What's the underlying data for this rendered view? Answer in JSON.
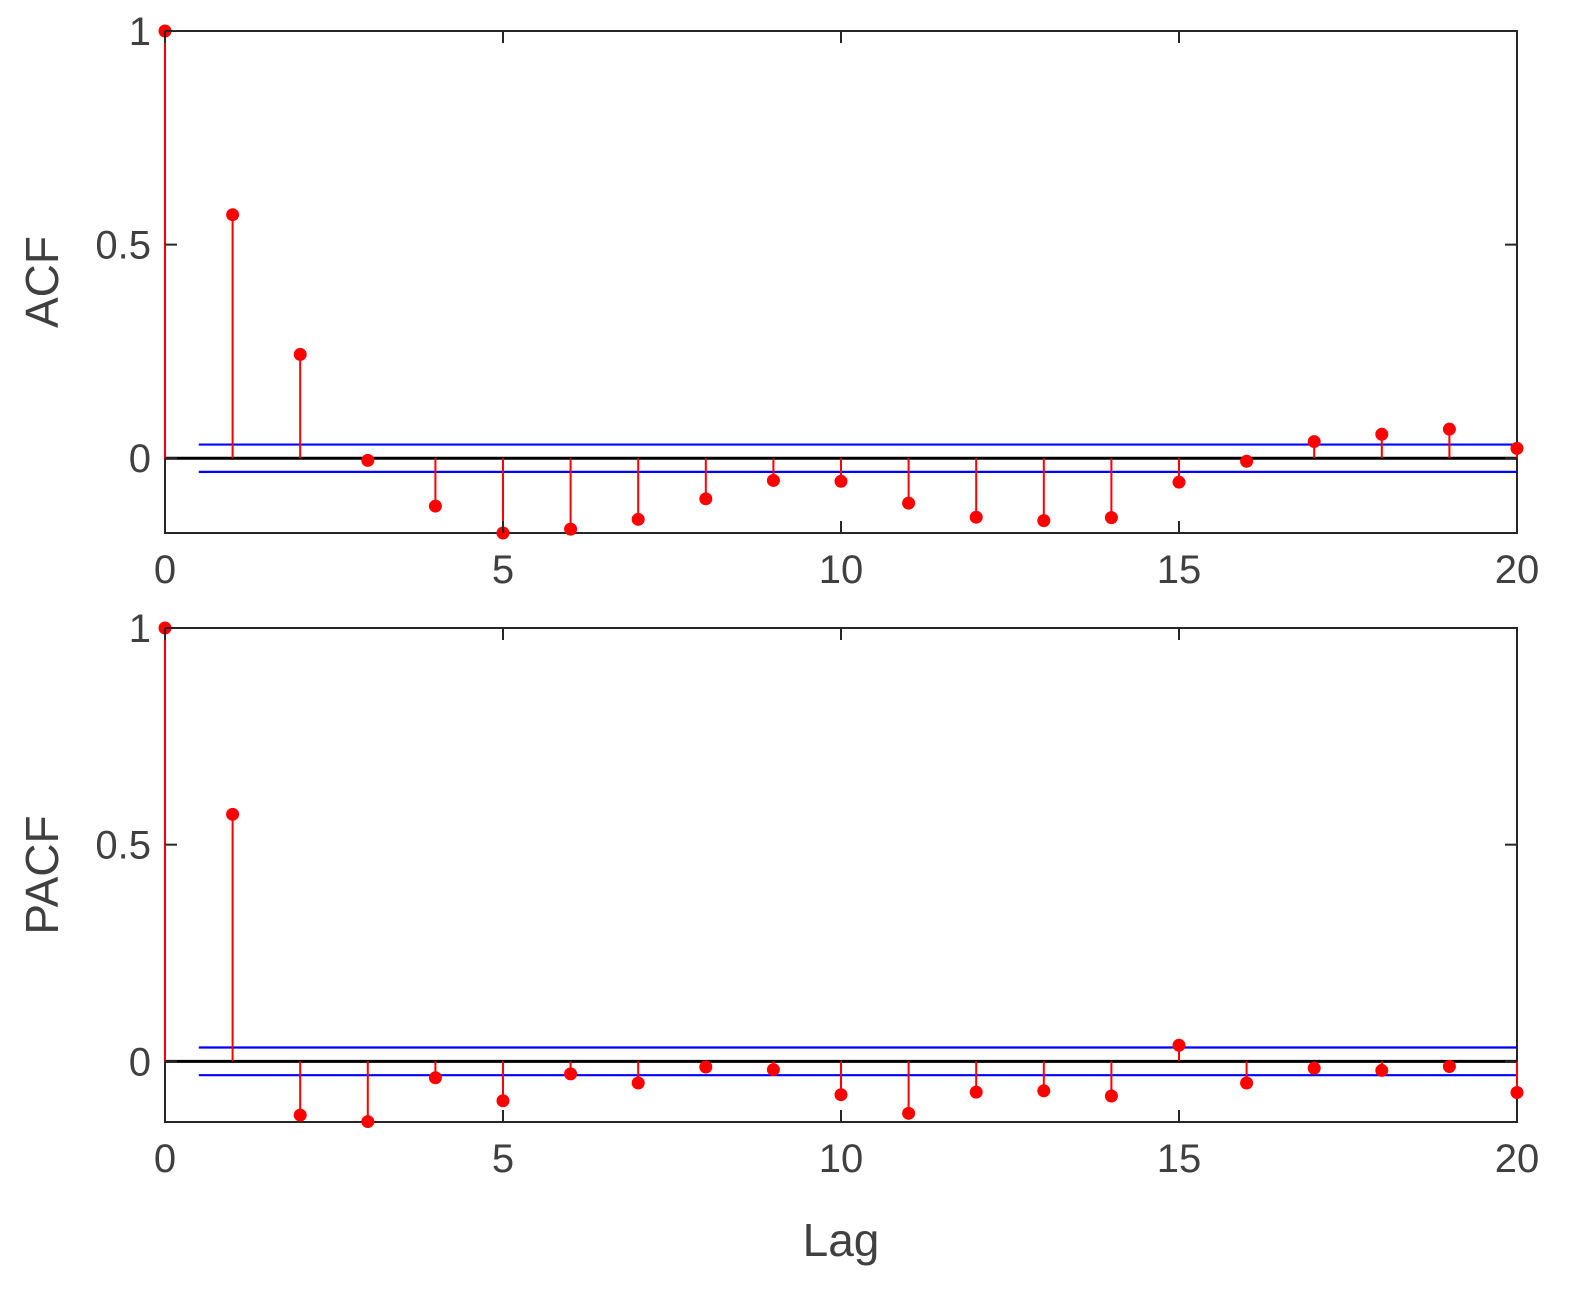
{
  "chart_data": [
    {
      "type": "stem",
      "ylabel": "ACF",
      "xlabel": "",
      "xlim": [
        0,
        20
      ],
      "ylim": [
        -0.175,
        1
      ],
      "xticks": [
        "0",
        "5",
        "10",
        "15",
        "20"
      ],
      "yticks": [
        "0",
        "0.5",
        "1"
      ],
      "lags": [
        0,
        1,
        2,
        3,
        4,
        5,
        6,
        7,
        8,
        9,
        10,
        11,
        12,
        13,
        14,
        15,
        16,
        17,
        18,
        19,
        20
      ],
      "values": [
        1.0,
        0.57,
        0.243,
        -0.005,
        -0.112,
        -0.175,
        -0.166,
        -0.143,
        -0.095,
        -0.052,
        -0.054,
        -0.105,
        -0.138,
        -0.146,
        -0.139,
        -0.056,
        -0.007,
        0.039,
        0.056,
        0.068,
        0.023
      ],
      "confidence_bounds": [
        0.032,
        -0.032
      ],
      "colors": {
        "stem": "#ff0000",
        "bounds": "#0000ff",
        "zero_line": "#000000"
      }
    },
    {
      "type": "stem",
      "ylabel": "PACF",
      "xlabel": "Lag",
      "xlim": [
        0,
        20
      ],
      "ylim": [
        -0.14,
        1
      ],
      "xticks": [
        "0",
        "5",
        "10",
        "15",
        "20"
      ],
      "yticks": [
        "0",
        "0.5",
        "1"
      ],
      "lags": [
        0,
        1,
        2,
        3,
        4,
        5,
        6,
        7,
        8,
        9,
        10,
        11,
        12,
        13,
        14,
        15,
        16,
        17,
        18,
        19,
        20
      ],
      "values": [
        1.0,
        0.57,
        -0.124,
        -0.139,
        -0.038,
        -0.091,
        -0.029,
        -0.05,
        -0.013,
        -0.019,
        -0.077,
        -0.12,
        -0.071,
        -0.068,
        -0.08,
        0.037,
        -0.05,
        -0.016,
        -0.021,
        -0.012,
        -0.072
      ],
      "confidence_bounds": [
        0.032,
        -0.032
      ],
      "colors": {
        "stem": "#ff0000",
        "bounds": "#0000ff",
        "zero_line": "#000000"
      }
    }
  ]
}
